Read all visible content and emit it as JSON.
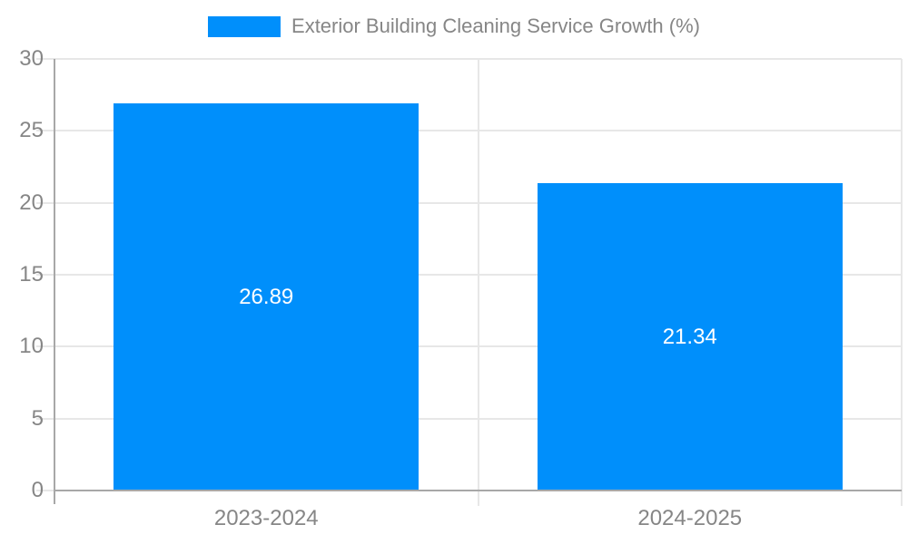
{
  "legend": {
    "label": "Exterior Building Cleaning Service Growth (%)"
  },
  "chart_data": {
    "type": "bar",
    "title": "Exterior Building Cleaning Service Growth (%)",
    "series": [
      {
        "name": "Exterior Building Cleaning Service Growth (%)",
        "values": [
          26.89,
          21.34
        ]
      }
    ],
    "categories": [
      "2023-2024",
      "2024-2025"
    ],
    "data_labels": [
      "26.89",
      "21.34"
    ],
    "ytick_labels": [
      "0",
      "5",
      "10",
      "15",
      "20",
      "25",
      "30"
    ],
    "yticks": [
      0,
      5,
      10,
      15,
      20,
      25,
      30
    ],
    "ylim": [
      0,
      30
    ],
    "xlabel": "",
    "ylabel": "",
    "grid": true,
    "legend_position": "top"
  },
  "colors": {
    "bar": "#008FFB",
    "axis_text": "#868686",
    "data_label_text": "#ffffff",
    "grid_line": "#e7e7e7",
    "axis_line": "#a8a8a8",
    "background": "#ffffff"
  }
}
